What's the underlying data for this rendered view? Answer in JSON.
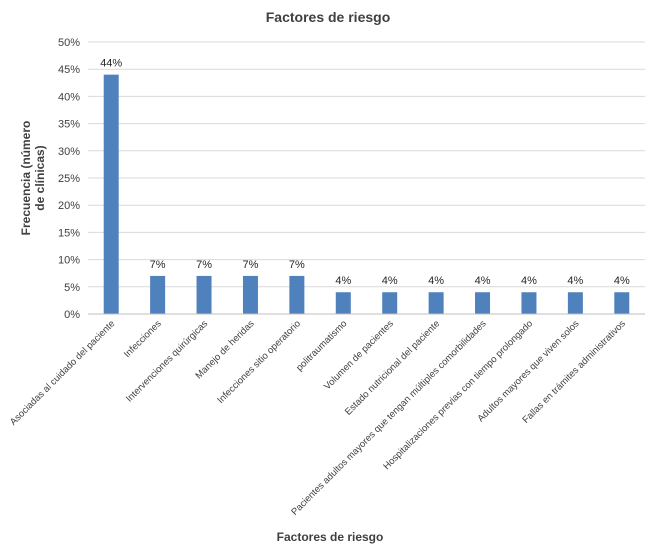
{
  "chart_data": {
    "type": "bar",
    "title": "Factores de riesgo",
    "xlabel": "Factores de riesgo",
    "ylabel": [
      "Frecuencia (número",
      "de clínicas)"
    ],
    "ylim": [
      0,
      0.5
    ],
    "yticks": [
      "0%",
      "5%",
      "10%",
      "15%",
      "20%",
      "25%",
      "30%",
      "35%",
      "40%",
      "45%",
      "50%"
    ],
    "grid": true,
    "legend": "none",
    "bar_color": "#4f81bd",
    "categories": [
      "Asociadas al cuidado del paciente",
      "Infecciones",
      "Intervenciones quirúrgicas",
      "Manejo de heridas",
      "Infecciones sitio operatorio",
      "politraumatismo",
      "Volumen de pacientes",
      "Estado nutricional del paciente",
      "Pacientes adultos mayores que tengan múltiples comorbilidades",
      "Hospitalizaciones previas con tiempo prolongado",
      "Adultos mayores que viven solos",
      "Fallas en trámites administrativos"
    ],
    "values": [
      0.44,
      0.07,
      0.07,
      0.07,
      0.07,
      0.04,
      0.04,
      0.04,
      0.04,
      0.04,
      0.04,
      0.04
    ],
    "data_labels": [
      "44%",
      "7%",
      "7%",
      "7%",
      "7%",
      "4%",
      "4%",
      "4%",
      "4%",
      "4%",
      "4%",
      "4%"
    ]
  }
}
